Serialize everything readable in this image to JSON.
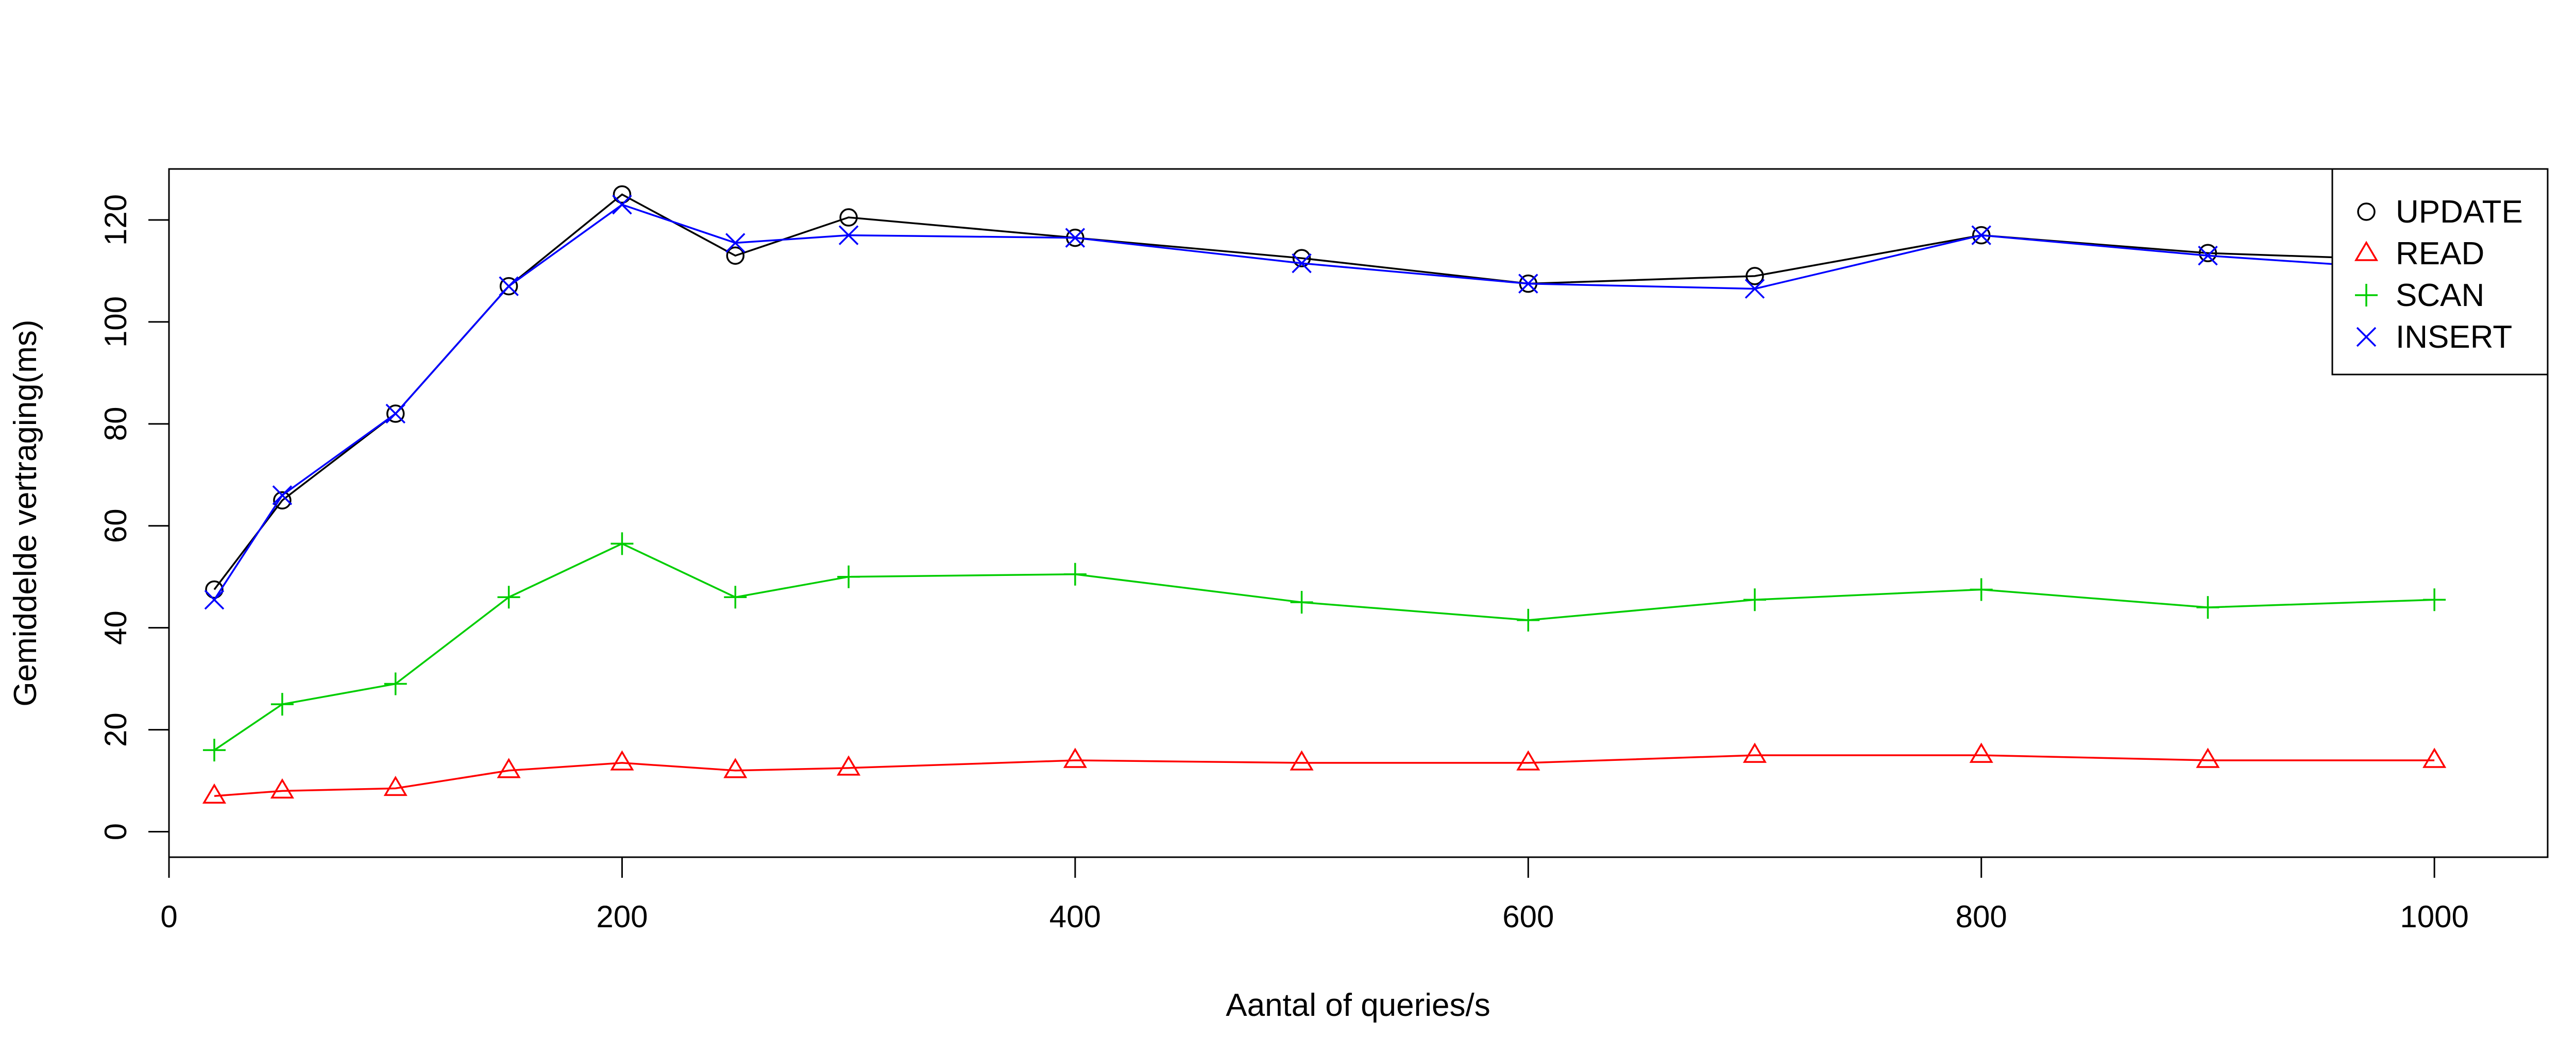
{
  "chart_data": {
    "type": "line",
    "title": "",
    "xlabel": "Aantal of queries/s",
    "ylabel": "Gemiddelde vertraging(ms)",
    "xlim": [
      0,
      1050
    ],
    "ylim": [
      -5,
      130
    ],
    "xticks": [
      0,
      200,
      400,
      600,
      800,
      1000
    ],
    "yticks": [
      0,
      20,
      40,
      60,
      80,
      100,
      120
    ],
    "grid": false,
    "legend_position": "top-right",
    "x": [
      20,
      50,
      100,
      150,
      200,
      250,
      300,
      400,
      500,
      600,
      700,
      800,
      900,
      1000
    ],
    "series": [
      {
        "name": "UPDATE",
        "color": "#000000",
        "marker": "circle",
        "values": [
          47.5,
          65,
          82,
          107,
          125,
          113,
          120.5,
          116.5,
          112.5,
          107.5,
          109,
          117,
          113.5,
          112
        ]
      },
      {
        "name": "READ",
        "color": "#ff0000",
        "marker": "triangle",
        "values": [
          7,
          8,
          8.5,
          12,
          13.5,
          12,
          12.5,
          14,
          13.5,
          13.5,
          15,
          15,
          14,
          14
        ]
      },
      {
        "name": "SCAN",
        "color": "#00cd00",
        "marker": "plus",
        "values": [
          16,
          25,
          29,
          46,
          56.5,
          46,
          50,
          50.5,
          45,
          41.5,
          45.5,
          47.5,
          44,
          45.5
        ]
      },
      {
        "name": "INSERT",
        "color": "#0000ff",
        "marker": "cross",
        "values": [
          45.5,
          66,
          82,
          107,
          123,
          115.5,
          117,
          116.5,
          111.5,
          107.5,
          106.5,
          117,
          113,
          110
        ]
      }
    ]
  }
}
